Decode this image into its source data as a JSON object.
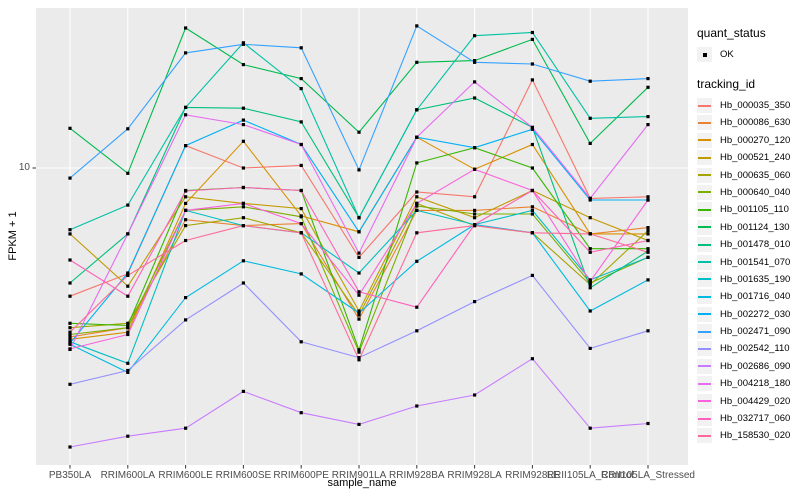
{
  "chart_data": {
    "type": "line",
    "title": "",
    "xlabel": "sample_name",
    "ylabel": "FPKM + 1",
    "y_scale": "log10",
    "y_tick_labels": [
      "10"
    ],
    "grid": true,
    "panel_bg": "#EBEBEB",
    "grid_color": "#FFFFFF",
    "point_color": "#000000",
    "axis_text_color": "#4D4D4D",
    "legend_position": "right",
    "legend": {
      "quant_status_title": "quant_status",
      "quant_status_value": "OK",
      "tracking_id_title": "tracking_id"
    },
    "x": [
      "PB350LA",
      "RRIM600LA",
      "RRIM600LE",
      "RRIM600SE",
      "RRIM600PE",
      "RRIM901LA",
      "RRIM928BA",
      "RRIM928LA",
      "RRIM928LE",
      "RRII105LA_Control",
      "RRII105LA_Stressed"
    ],
    "series": [
      {
        "tracking_id": "Hb_000035_350",
        "color": "#F8766D",
        "values": [
          3.7,
          4.4,
          11.9,
          10,
          10.2,
          5,
          8.3,
          8,
          19.8,
          7.9,
          8
        ]
      },
      {
        "tracking_id": "Hb_000086_630",
        "color": "#EA8331",
        "values": [
          2.7,
          2.9,
          6.7,
          6.4,
          6.5,
          3.1,
          7.2,
          7.2,
          7.4,
          6,
          6.3
        ]
      },
      {
        "tracking_id": "Hb_000270_120",
        "color": "#D89000",
        "values": [
          2.65,
          2.8,
          7.6,
          12.3,
          6.9,
          6.1,
          12.7,
          9.9,
          12,
          6,
          6
        ]
      },
      {
        "tracking_id": "Hb_000521_240",
        "color": "#C09B00",
        "values": [
          6,
          4,
          8,
          7.6,
          7.3,
          3.3,
          8,
          6.8,
          8.4,
          6.8,
          5.7
        ]
      },
      {
        "tracking_id": "Hb_000635_060",
        "color": "#A3A500",
        "values": [
          2.9,
          3,
          6.4,
          6.8,
          6.05,
          3.2,
          7.6,
          6.4,
          6.05,
          4.05,
          6.15
        ]
      },
      {
        "tracking_id": "Hb_000640_040",
        "color": "#7CAE00",
        "values": [
          2.75,
          2.9,
          7.2,
          7.4,
          6.85,
          2.4,
          7.45,
          7,
          7,
          4.1,
          5
        ]
      },
      {
        "tracking_id": "Hb_001105_110",
        "color": "#39B600",
        "values": [
          3,
          2.95,
          8.4,
          8.6,
          8.4,
          2.44,
          10.4,
          11.7,
          10,
          5.35,
          5.35
        ]
      },
      {
        "tracking_id": "Hb_001124_130",
        "color": "#00BB4E",
        "values": [
          13.6,
          9.6,
          29.6,
          22.3,
          20,
          13.2,
          22.7,
          23,
          27.1,
          12.1,
          18.7
        ]
      },
      {
        "tracking_id": "Hb_001478_010",
        "color": "#00BF7D",
        "values": [
          4.1,
          6,
          16,
          15.9,
          14.3,
          6.8,
          15.7,
          17.2,
          13.7,
          3.95,
          5.25
        ]
      },
      {
        "tracking_id": "Hb_001541_070",
        "color": "#00C1A3",
        "values": [
          6.2,
          7.5,
          16,
          26.4,
          18.5,
          6.8,
          15.7,
          27.9,
          28.6,
          14.7,
          14.9
        ]
      },
      {
        "tracking_id": "Hb_001635_190",
        "color": "#00BFC4",
        "values": [
          2.6,
          2.2,
          7.2,
          6.4,
          6.05,
          4.43,
          7.2,
          6.45,
          7.2,
          4.2,
          5
        ]
      },
      {
        "tracking_id": "Hb_001716_040",
        "color": "#00BAE0",
        "values": [
          2.55,
          2.05,
          3.66,
          4.87,
          4.4,
          3.25,
          4.85,
          6.45,
          6.05,
          3.3,
          4.2
        ]
      },
      {
        "tracking_id": "Hb_002272_030",
        "color": "#00B0F6",
        "values": [
          2.57,
          4.43,
          11.9,
          14.5,
          12,
          6.1,
          12.7,
          11.7,
          13.5,
          7.8,
          7.8
        ]
      },
      {
        "tracking_id": "Hb_002471_090",
        "color": "#35A2FF",
        "values": [
          9.25,
          13.55,
          24.4,
          26.1,
          25.4,
          9.85,
          30.1,
          22.7,
          22.4,
          19.6,
          20
        ]
      },
      {
        "tracking_id": "Hb_002542_110",
        "color": "#9590FF",
        "values": [
          1.87,
          2.08,
          3.08,
          4.1,
          2.6,
          2.3,
          2.83,
          3.55,
          4.35,
          2.47,
          2.83
        ]
      },
      {
        "tracking_id": "Hb_002686_090",
        "color": "#C77CFF",
        "values": [
          1.15,
          1.25,
          1.33,
          1.77,
          1.5,
          1.37,
          1.58,
          1.72,
          2.28,
          1.33,
          1.38
        ]
      },
      {
        "tracking_id": "Hb_004218_180",
        "color": "#E76BF3",
        "values": [
          2.45,
          6,
          15.1,
          14,
          12,
          5.17,
          12.7,
          19.5,
          13.7,
          7.9,
          14
        ]
      },
      {
        "tracking_id": "Hb_004429_020",
        "color": "#FA62DB",
        "values": [
          2.46,
          2.75,
          7.2,
          7.6,
          6.5,
          3.73,
          7.6,
          9.9,
          8.4,
          4.15,
          7.8
        ]
      },
      {
        "tracking_id": "Hb_032717_060",
        "color": "#FF62BC",
        "values": [
          4.9,
          3.7,
          8.37,
          8.6,
          8.4,
          3.83,
          3.4,
          6.45,
          8.4,
          5.2,
          5.7
        ]
      },
      {
        "tracking_id": "Hb_158530_020",
        "color": "#FF6A98",
        "values": [
          2.8,
          4.35,
          5.7,
          6.4,
          6.05,
          2.26,
          6.05,
          6.4,
          6.05,
          6,
          5.2
        ]
      }
    ]
  }
}
